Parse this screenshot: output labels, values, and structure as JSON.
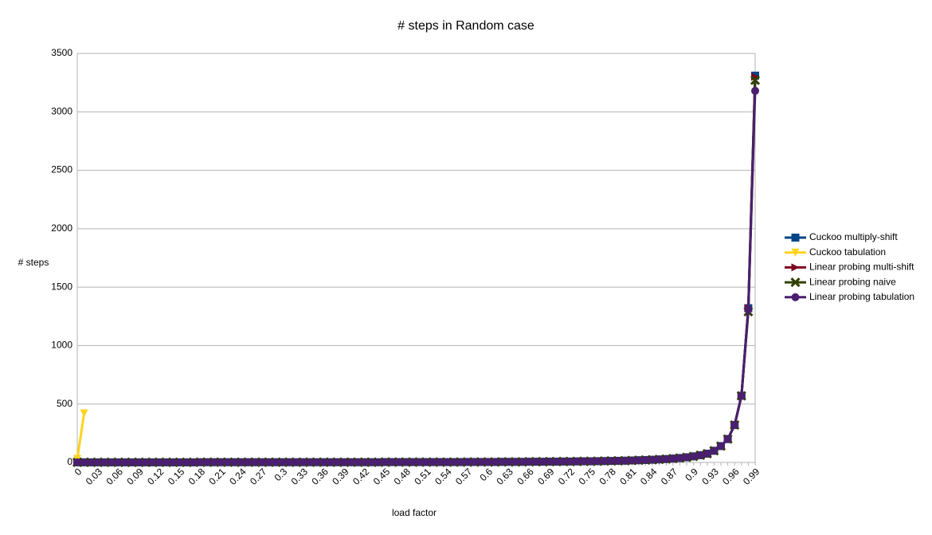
{
  "chart_data": {
    "type": "line",
    "title": "# steps in Random case",
    "x_label": "load factor",
    "y_label": "# steps",
    "categories": [
      "0",
      null,
      null,
      "0.03",
      null,
      null,
      "0.06",
      null,
      null,
      "0.09",
      null,
      null,
      "0.12",
      null,
      null,
      "0.15",
      null,
      null,
      "0.18",
      null,
      null,
      "0.21",
      null,
      null,
      "0.24",
      null,
      null,
      "0.27",
      null,
      null,
      "0.3",
      null,
      null,
      "0.33",
      null,
      null,
      "0.36",
      null,
      null,
      "0.39",
      null,
      null,
      "0.42",
      null,
      null,
      "0.45",
      null,
      null,
      "0.48",
      null,
      null,
      "0.51",
      null,
      null,
      "0.54",
      null,
      null,
      "0.57",
      null,
      null,
      "0.6",
      null,
      null,
      "0.63",
      null,
      null,
      "0.66",
      null,
      null,
      "0.69",
      null,
      null,
      "0.72",
      null,
      null,
      "0.75",
      null,
      null,
      "0.78",
      null,
      null,
      "0.81",
      null,
      null,
      "0.84",
      null,
      null,
      "0.87",
      null,
      null,
      "0.9",
      null,
      null,
      "0.93",
      null,
      null,
      "0.96",
      null,
      null,
      "0.99"
    ],
    "series": [
      {
        "name": "Cuckoo multiply-shift",
        "color": "#004586",
        "marker": "square",
        "values": [
          1,
          1,
          1,
          1,
          1,
          1,
          1,
          1,
          1,
          1,
          1,
          1,
          1,
          1,
          1,
          1,
          1,
          1,
          2,
          2,
          2,
          2,
          2,
          2,
          2,
          2,
          2,
          2,
          2,
          2,
          2,
          2,
          2,
          2,
          2,
          2,
          2,
          2,
          2,
          2,
          2,
          2,
          2,
          2,
          2,
          3,
          3,
          3,
          3,
          3,
          3,
          3,
          3,
          3,
          3,
          3,
          3,
          4,
          4,
          4,
          4,
          4,
          5,
          5,
          5,
          5,
          6,
          6,
          6,
          7,
          7,
          8,
          8,
          9,
          10,
          10,
          11,
          12,
          13,
          14,
          15,
          17,
          19,
          21,
          23,
          26,
          29,
          33,
          38,
          44,
          52,
          62,
          75,
          100,
          140,
          200,
          320,
          570,
          1320,
          3310
        ]
      },
      {
        "name": "Cuckoo tabulation",
        "color": "#ffd320",
        "marker": "triangle-down",
        "values": [
          30,
          420,
          null,
          null,
          null,
          null,
          null,
          null,
          null,
          null,
          null,
          null,
          null,
          null,
          null,
          null,
          null,
          null,
          null,
          null,
          null,
          null,
          null,
          null,
          null,
          null,
          null,
          null,
          null,
          null,
          null,
          null,
          null,
          null,
          null,
          null,
          null,
          null,
          null,
          null,
          null,
          null,
          null,
          null,
          null,
          null,
          null,
          null,
          null,
          null,
          null,
          null,
          null,
          null,
          null,
          null,
          null,
          null,
          null,
          null,
          null,
          null,
          null,
          null,
          null,
          null,
          null,
          null,
          null,
          null,
          null,
          null,
          null,
          null,
          null,
          null,
          null,
          null,
          null,
          null,
          null,
          null,
          null,
          null,
          null,
          null,
          null,
          null,
          null,
          null,
          null,
          null,
          null,
          null,
          null,
          null,
          null,
          null,
          null,
          null
        ]
      },
      {
        "name": "Linear probing multi-shift",
        "color": "#7e0021",
        "marker": "triangle-right",
        "values": [
          1,
          1,
          1,
          1,
          1,
          1,
          1,
          1,
          1,
          1,
          1,
          1,
          1,
          1,
          1,
          1,
          1,
          1,
          2,
          2,
          2,
          2,
          2,
          2,
          2,
          2,
          2,
          2,
          2,
          2,
          2,
          2,
          2,
          2,
          2,
          2,
          2,
          2,
          2,
          2,
          2,
          2,
          2,
          2,
          2,
          3,
          3,
          3,
          3,
          3,
          3,
          3,
          3,
          3,
          3,
          3,
          3,
          4,
          4,
          4,
          4,
          4,
          5,
          5,
          5,
          5,
          6,
          6,
          6,
          7,
          7,
          8,
          8,
          9,
          10,
          10,
          11,
          12,
          13,
          14,
          15,
          17,
          19,
          21,
          23,
          26,
          29,
          33,
          38,
          44,
          52,
          62,
          75,
          100,
          140,
          200,
          320,
          570,
          1320,
          3300
        ]
      },
      {
        "name": "Linear probing naive",
        "color": "#314004",
        "marker": "x",
        "values": [
          1,
          1,
          1,
          1,
          1,
          1,
          1,
          1,
          1,
          1,
          1,
          1,
          1,
          1,
          1,
          1,
          1,
          1,
          2,
          2,
          2,
          2,
          2,
          2,
          2,
          2,
          2,
          2,
          2,
          2,
          2,
          2,
          2,
          2,
          2,
          2,
          2,
          2,
          2,
          2,
          2,
          2,
          2,
          2,
          2,
          3,
          3,
          3,
          3,
          3,
          3,
          3,
          3,
          3,
          3,
          3,
          3,
          4,
          4,
          4,
          4,
          4,
          5,
          5,
          5,
          5,
          6,
          6,
          6,
          7,
          7,
          8,
          8,
          9,
          10,
          10,
          11,
          12,
          13,
          14,
          15,
          17,
          19,
          21,
          23,
          26,
          29,
          33,
          38,
          44,
          52,
          62,
          75,
          100,
          140,
          200,
          320,
          570,
          1290,
          3270
        ]
      },
      {
        "name": "Linear probing tabulation",
        "color": "#4b1f6f",
        "marker": "circle",
        "values": [
          1,
          1,
          1,
          1,
          1,
          1,
          1,
          1,
          1,
          1,
          1,
          1,
          1,
          1,
          1,
          1,
          1,
          1,
          2,
          2,
          2,
          2,
          2,
          2,
          2,
          2,
          2,
          2,
          2,
          2,
          2,
          2,
          2,
          2,
          2,
          2,
          2,
          2,
          2,
          2,
          2,
          2,
          2,
          2,
          2,
          3,
          3,
          3,
          3,
          3,
          3,
          3,
          3,
          3,
          3,
          3,
          3,
          4,
          4,
          4,
          4,
          4,
          5,
          5,
          5,
          5,
          6,
          6,
          6,
          7,
          7,
          8,
          8,
          9,
          10,
          10,
          11,
          12,
          13,
          14,
          15,
          17,
          19,
          21,
          23,
          26,
          29,
          33,
          38,
          44,
          52,
          62,
          75,
          100,
          140,
          200,
          320,
          570,
          1310,
          3180
        ]
      }
    ],
    "ylim": [
      0,
      3500
    ],
    "yticks": [
      0,
      500,
      1000,
      1500,
      2000,
      2500,
      3000,
      3500
    ],
    "grid": true,
    "legend": "right"
  }
}
